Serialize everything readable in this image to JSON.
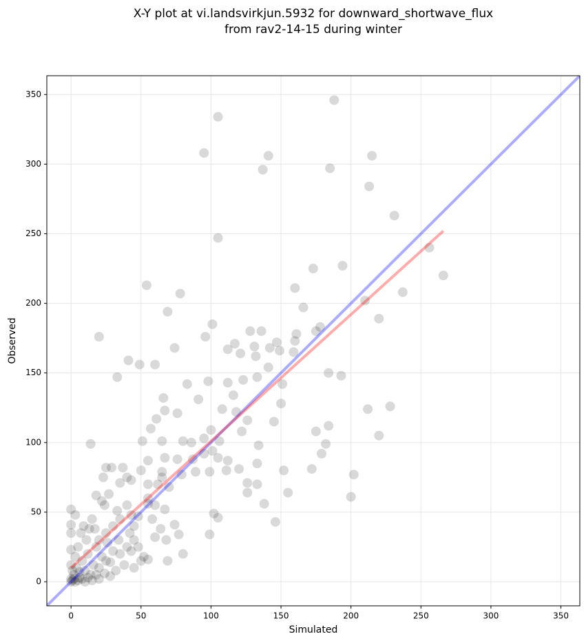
{
  "chart_data": {
    "type": "scatter",
    "title": [
      "X-Y plot at vi.landsvirkjun.5932 for downward_shortwave_flux",
      "from rav2-14-15 during winter"
    ],
    "x_label": "Simulated",
    "y_label": "Observed",
    "xlim": [
      -17.3,
      363.5
    ],
    "ylim": [
      -17.3,
      363.5
    ],
    "xticks": [
      0,
      50,
      100,
      150,
      200,
      250,
      300,
      350
    ],
    "yticks": [
      0,
      50,
      100,
      150,
      200,
      250,
      300,
      350
    ],
    "grid": true,
    "color": "#000000",
    "opacity": 0.15,
    "x": [
      95,
      105,
      188,
      141,
      137,
      185,
      215,
      213,
      231,
      105,
      256,
      266,
      54,
      78,
      69,
      20,
      96,
      101,
      173,
      194,
      160,
      166,
      237,
      220,
      210,
      178,
      175,
      136,
      41,
      33,
      49,
      60,
      74,
      128,
      131,
      117,
      112,
      121,
      132,
      142,
      147,
      149,
      160,
      159,
      161,
      141,
      133,
      123,
      112,
      98,
      83,
      91,
      66,
      67,
      76,
      61,
      57,
      80,
      100,
      108,
      116,
      118,
      126,
      122,
      106,
      101,
      95,
      95,
      86,
      87,
      76,
      67,
      65,
      51,
      55,
      50,
      65,
      79,
      89,
      99,
      105,
      112,
      111,
      120,
      126,
      133,
      133,
      145,
      150,
      151,
      134,
      152,
      155,
      126,
      138,
      146,
      172,
      175,
      184,
      182,
      179,
      193,
      184,
      212,
      228,
      220,
      202,
      200,
      102,
      105,
      99,
      80,
      77,
      74,
      67,
      55,
      69,
      55,
      43,
      43,
      33,
      22,
      25,
      29,
      37,
      40,
      43,
      35,
      23,
      14,
      0,
      0,
      0,
      0,
      0,
      0,
      2,
      4,
      6,
      8,
      10,
      12,
      14,
      16,
      18,
      20,
      22,
      24,
      26,
      28,
      30,
      32,
      34,
      5,
      7,
      9,
      11,
      13,
      15,
      3,
      1,
      1,
      0,
      2,
      3,
      5,
      6,
      8,
      10,
      12,
      15,
      18,
      20,
      25,
      28,
      35,
      38,
      40,
      45,
      50,
      45,
      30,
      25,
      20,
      17,
      3,
      27,
      18,
      24,
      35,
      40,
      42,
      48,
      55,
      60,
      58,
      62,
      55,
      65,
      70,
      48,
      52,
      60,
      64,
      68,
      45
    ],
    "values": [
      308,
      334,
      346,
      306,
      296,
      297,
      306,
      284,
      263,
      247,
      240,
      220,
      213,
      207,
      194,
      176,
      176,
      185,
      225,
      227,
      211,
      197,
      208,
      189,
      202,
      183,
      180,
      180,
      159,
      147,
      156,
      156,
      168,
      180,
      169,
      171,
      167,
      164,
      162,
      168,
      172,
      166,
      173,
      165,
      178,
      154,
      147,
      145,
      143,
      144,
      142,
      131,
      132,
      123,
      121,
      117,
      110,
      101,
      109,
      124,
      134,
      122,
      116,
      108,
      101,
      94,
      103,
      92,
      100,
      88,
      88,
      89,
      101,
      101,
      87,
      80,
      79,
      77,
      79,
      79,
      89,
      87,
      80,
      81,
      71,
      70,
      85,
      115,
      128,
      142,
      98,
      80,
      64,
      64,
      56,
      43,
      81,
      108,
      112,
      99,
      92,
      148,
      150,
      124,
      126,
      105,
      77,
      61,
      49,
      46,
      34,
      20,
      34,
      41,
      52,
      56,
      15,
      16,
      22,
      48,
      51,
      58,
      82,
      82,
      82,
      75,
      73,
      71,
      75,
      99,
      52,
      41,
      35,
      23,
      12,
      2,
      5,
      10,
      3,
      15,
      8,
      20,
      5,
      12,
      25,
      10,
      18,
      6,
      28,
      14,
      22,
      8,
      30,
      25,
      35,
      40,
      30,
      38,
      45,
      18,
      8,
      1,
      0,
      2,
      0,
      1,
      7,
      2,
      0,
      3,
      1,
      5,
      2,
      15,
      4,
      20,
      12,
      25,
      30,
      15,
      40,
      40,
      35,
      30,
      38,
      48,
      63,
      62,
      55,
      45,
      55,
      35,
      47,
      60,
      55,
      45,
      70,
      70,
      75,
      68,
      25,
      18,
      32,
      38,
      30,
      10
    ],
    "lines": [
      {
        "color": "#0000ff",
        "opacity": 0.33,
        "x": [
          -17.3,
          363.5
        ],
        "values": [
          -17.3,
          363.5
        ]
      },
      {
        "color": "#ff0000",
        "opacity": 0.33,
        "x": [
          0,
          266
        ],
        "values": [
          10,
          252
        ]
      }
    ]
  }
}
